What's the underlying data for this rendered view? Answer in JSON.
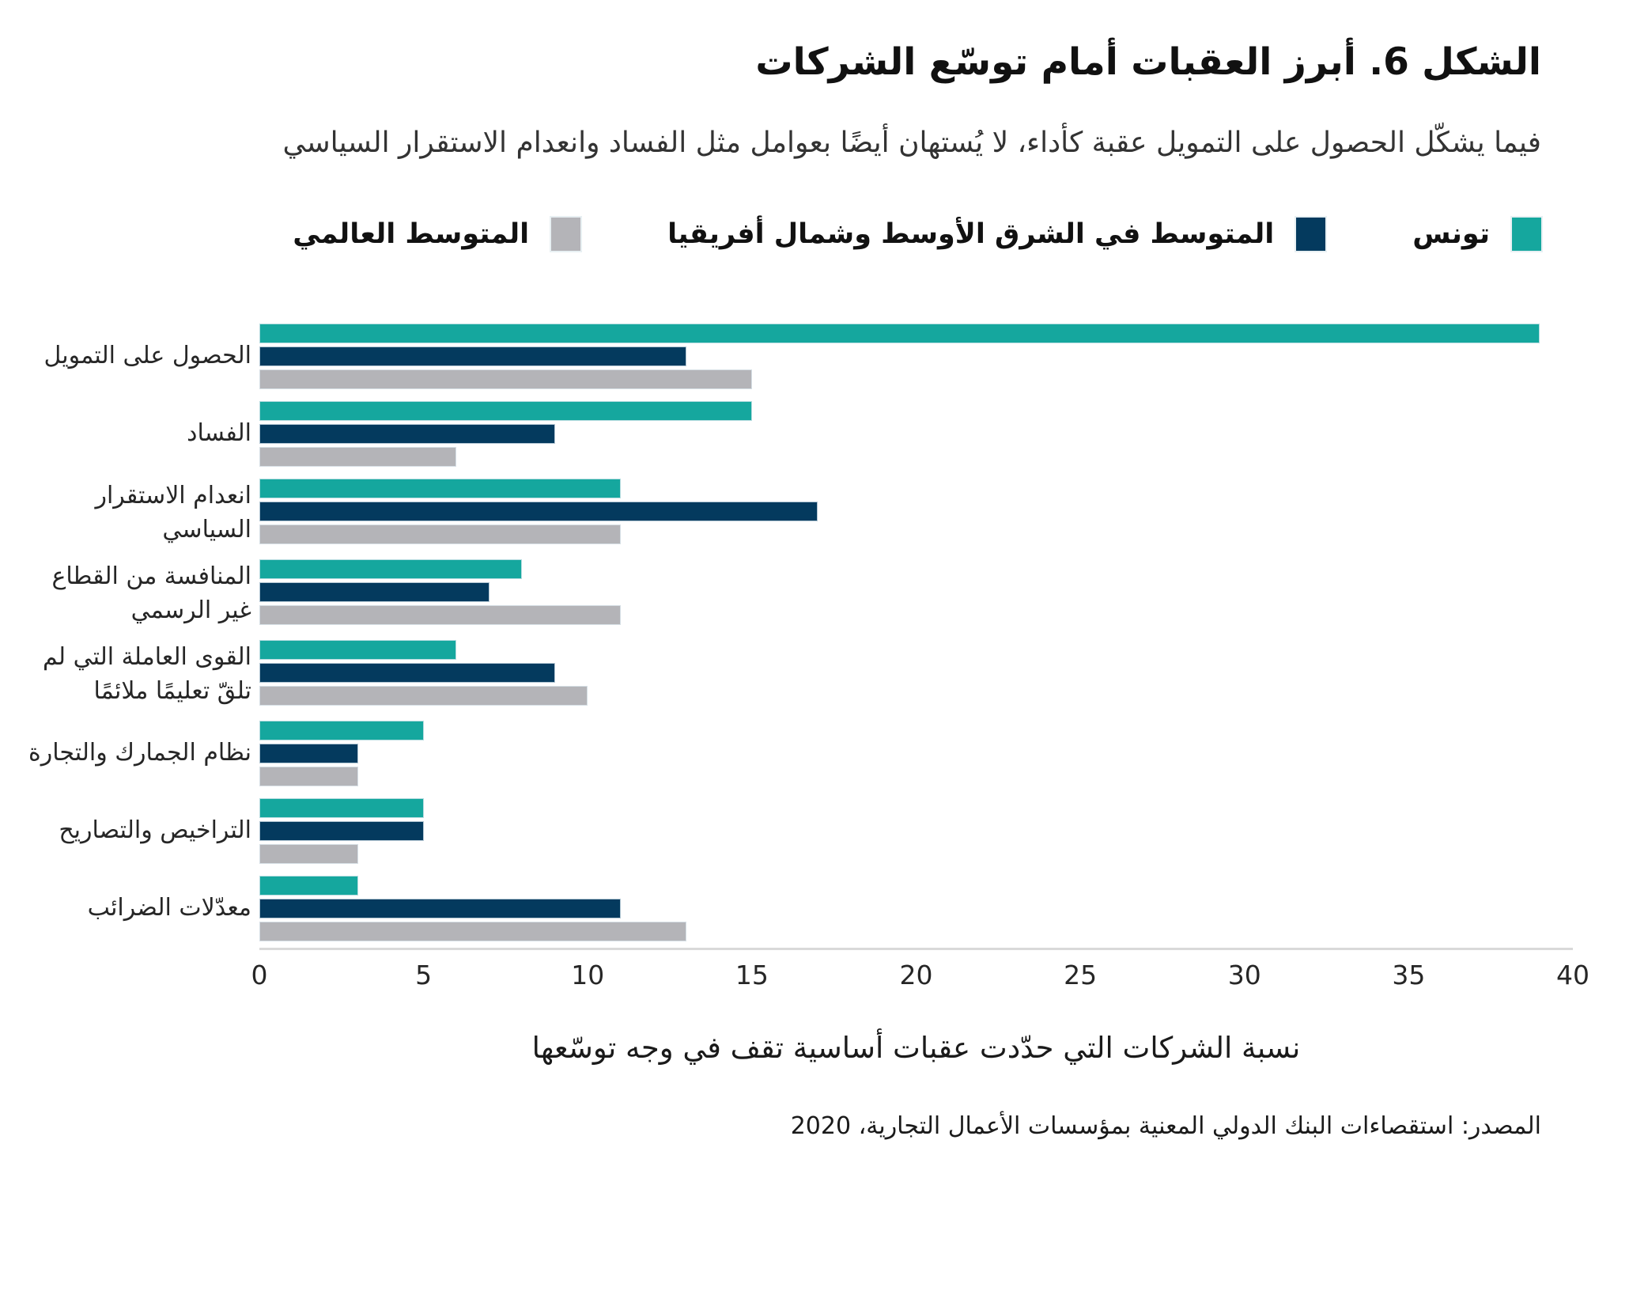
{
  "header": {
    "title": "الشكل 6. أبرز العقبات أمام توسّع الشركات",
    "subtitle": "فيما يشكّل الحصول على التمويل عقبة كأداء، لا يُستهان أيضًا بعوامل مثل الفساد وانعدام الاستقرار السياسي"
  },
  "chart_data": {
    "type": "bar",
    "orientation": "horizontal",
    "title": "الشكل 6. أبرز العقبات أمام توسّع الشركات",
    "xlabel": "نسبة الشركات التي حدّدت عقبات أساسية تقف في وجه توسّعها",
    "xlim": [
      0,
      40
    ],
    "x_ticks": [
      0,
      5,
      10,
      15,
      20,
      25,
      30,
      35,
      40
    ],
    "grid": false,
    "legend_position": "top",
    "categories": [
      "الحصول على التمويل",
      "الفساد",
      "انعدام الاستقرار السياسي",
      "المنافسة من القطاع غير الرسمي",
      "القوى العاملة التي لم تلقّ تعليمًا ملائمًا",
      "نظام الجمارك والتجارة",
      "التراخيص والتصاريح",
      "معدّلات الضرائب"
    ],
    "series": [
      {
        "name": "تونس",
        "color": "#15A79E",
        "values": [
          39,
          15,
          11,
          8,
          6,
          5,
          5,
          3
        ]
      },
      {
        "name": "المتوسط في الشرق الأوسط وشمال أفريقيا",
        "color": "#043A5E",
        "values": [
          13,
          9,
          17,
          7,
          9,
          3,
          5,
          11
        ]
      },
      {
        "name": "المتوسط العالمي",
        "color": "#B4B4B8",
        "values": [
          15,
          6,
          11,
          11,
          10,
          3,
          3,
          13
        ]
      }
    ]
  },
  "footer": {
    "source": "المصدر: استقصاءات البنك الدولي المعنية بمؤسسات الأعمال التجارية، 2020"
  }
}
